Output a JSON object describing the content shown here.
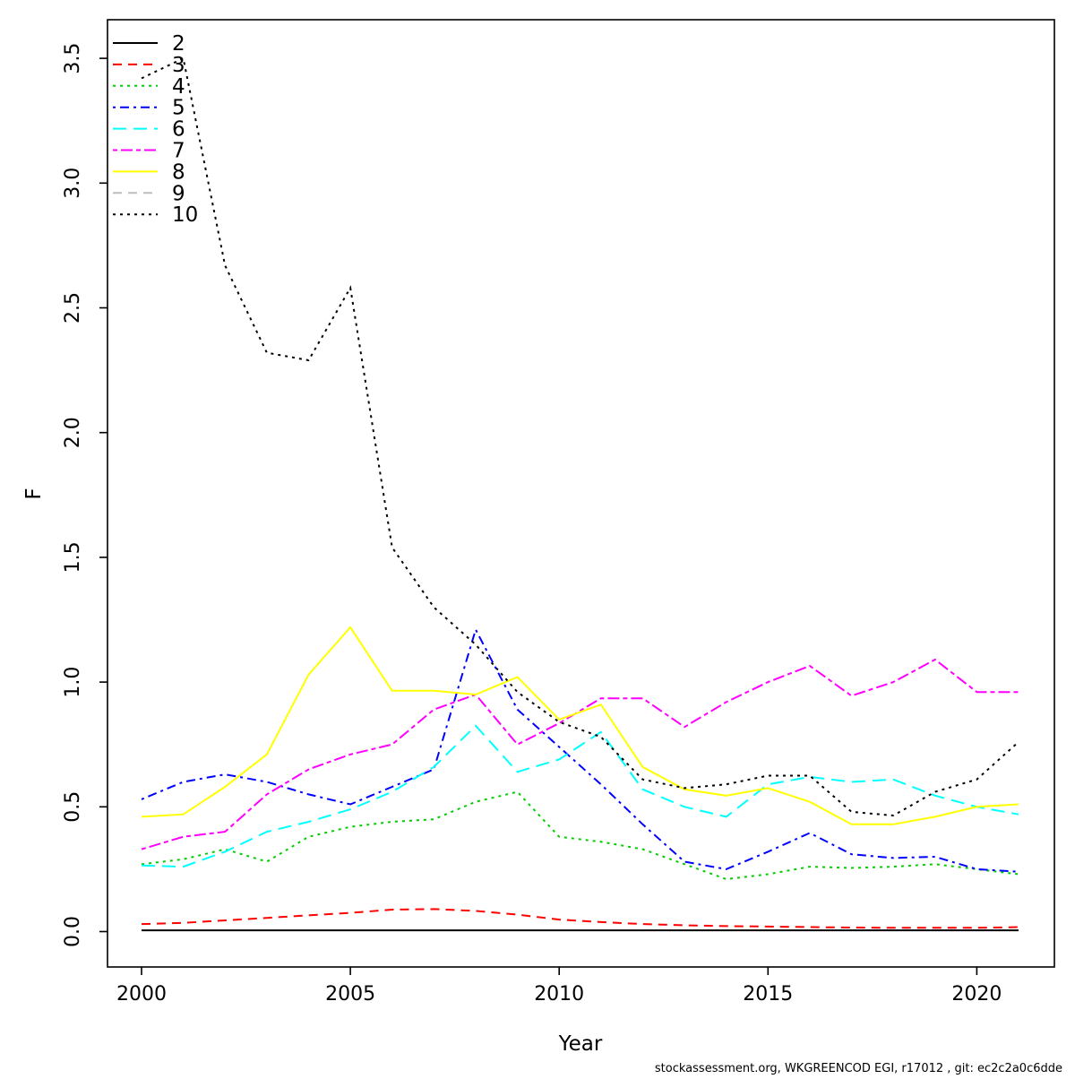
{
  "figure": {
    "background": "#ffffff"
  },
  "footer": {
    "text": "stockassessment.org, WKGREENCOD  EGI, r17012 , git: ec2c2a0c6dde"
  },
  "chart_data": {
    "type": "line",
    "title": "",
    "xlabel": "Year",
    "ylabel": "F",
    "x": [
      2000,
      2001,
      2002,
      2003,
      2004,
      2005,
      2006,
      2007,
      2008,
      2009,
      2010,
      2011,
      2012,
      2013,
      2014,
      2015,
      2016,
      2017,
      2018,
      2019,
      2020,
      2021
    ],
    "x_ticks": [
      2000,
      2005,
      2010,
      2015,
      2020
    ],
    "x_tick_labels": [
      "2000",
      "2005",
      "2010",
      "2015",
      "2020"
    ],
    "y_ticks": [
      0.0,
      0.5,
      1.0,
      1.5,
      2.0,
      2.5,
      3.0,
      3.5
    ],
    "y_tick_labels": [
      "0.0",
      "0.5",
      "1.0",
      "1.5",
      "2.0",
      "2.5",
      "3.0",
      "3.5"
    ],
    "xlim": [
      1999.2,
      2021.9
    ],
    "ylim": [
      -0.14,
      3.65
    ],
    "grid": false,
    "legend_position": "top-left",
    "series": [
      {
        "name": "2",
        "color": "#000000",
        "linestyle": "solid",
        "values": [
          0.005,
          0.005,
          0.005,
          0.005,
          0.005,
          0.005,
          0.005,
          0.005,
          0.005,
          0.005,
          0.005,
          0.005,
          0.005,
          0.005,
          0.005,
          0.005,
          0.005,
          0.005,
          0.005,
          0.005,
          0.005,
          0.005
        ]
      },
      {
        "name": "3",
        "color": "#FF0000",
        "linestyle": "dashed",
        "values": [
          0.03,
          0.035,
          0.045,
          0.055,
          0.065,
          0.075,
          0.088,
          0.09,
          0.083,
          0.068,
          0.048,
          0.038,
          0.03,
          0.025,
          0.022,
          0.02,
          0.018,
          0.016,
          0.015,
          0.015,
          0.015,
          0.018
        ]
      },
      {
        "name": "4",
        "color": "#00CD00",
        "linestyle": "dotted",
        "values": [
          0.27,
          0.29,
          0.33,
          0.28,
          0.38,
          0.42,
          0.44,
          0.45,
          0.52,
          0.56,
          0.38,
          0.36,
          0.33,
          0.27,
          0.21,
          0.23,
          0.26,
          0.255,
          0.26,
          0.27,
          0.25,
          0.23
        ]
      },
      {
        "name": "5",
        "color": "#0000FF",
        "linestyle": "dotdash",
        "values": [
          0.53,
          0.6,
          0.63,
          0.6,
          0.55,
          0.51,
          0.58,
          0.65,
          1.21,
          0.89,
          0.74,
          0.59,
          0.43,
          0.28,
          0.25,
          0.32,
          0.395,
          0.31,
          0.295,
          0.3,
          0.25,
          0.24
        ]
      },
      {
        "name": "6",
        "color": "#00FFFF",
        "linestyle": "longdash",
        "values": [
          0.265,
          0.26,
          0.32,
          0.4,
          0.44,
          0.49,
          0.56,
          0.66,
          0.825,
          0.64,
          0.69,
          0.8,
          0.57,
          0.5,
          0.46,
          0.59,
          0.62,
          0.6,
          0.61,
          0.545,
          0.5,
          0.47
        ]
      },
      {
        "name": "7",
        "color": "#FF00FF",
        "linestyle": "twodash",
        "values": [
          0.33,
          0.38,
          0.4,
          0.55,
          0.65,
          0.71,
          0.75,
          0.89,
          0.95,
          0.75,
          0.835,
          0.935,
          0.935,
          0.82,
          0.92,
          1.0,
          1.065,
          0.945,
          1.0,
          1.09,
          0.96,
          0.96
        ]
      },
      {
        "name": "8",
        "color": "#FFFF00",
        "linestyle": "solid",
        "values": [
          0.46,
          0.47,
          0.58,
          0.71,
          1.03,
          1.22,
          0.965,
          0.965,
          0.95,
          1.02,
          0.85,
          0.91,
          0.66,
          0.57,
          0.545,
          0.575,
          0.52,
          0.43,
          0.43,
          0.46,
          0.5,
          0.51
        ]
      },
      {
        "name": "9",
        "color": "#BEBEBE",
        "linestyle": "dashed",
        "values": []
      },
      {
        "name": "10",
        "color": "#000000",
        "linestyle": "dotted",
        "values": [
          3.42,
          3.5,
          2.67,
          2.32,
          2.29,
          2.58,
          1.54,
          1.3,
          1.15,
          0.96,
          0.84,
          0.78,
          0.61,
          0.575,
          0.59,
          0.625,
          0.625,
          0.48,
          0.465,
          0.56,
          0.61,
          0.76
        ]
      }
    ]
  }
}
